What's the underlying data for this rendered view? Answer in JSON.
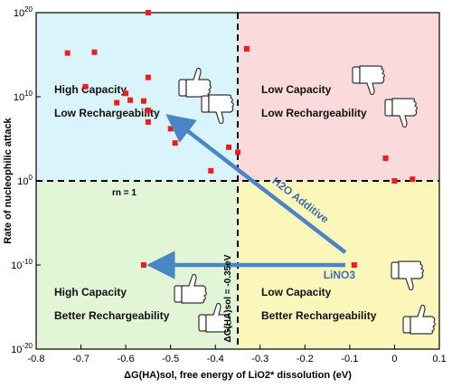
{
  "chart_data": {
    "type": "scatter",
    "xlabel": "ΔG(HA)sol, free energy of LiO2* dissolution (eV)",
    "ylabel": "Rate of nucleophilic attack",
    "xlim": [
      -0.8,
      0.1
    ],
    "ylim_log10": [
      -20,
      20
    ],
    "y_scale": "log",
    "x_ticks": [
      "-0.8",
      "-0.7",
      "-0.6",
      "-0.5",
      "-0.4",
      "-0.3",
      "-0.2",
      "-0.1",
      "0",
      "0.1"
    ],
    "y_ticks": [
      "10^-20",
      "10^-10",
      "10^0",
      "10^10",
      "10^20"
    ],
    "threshold_x": -0.35,
    "threshold_y_log10": 0,
    "threshold_x_label": "ΔG(HA)sol = -0.35eV",
    "threshold_y_label": "rn = 1",
    "quadrants": [
      {
        "position": "top-left",
        "line1": "High Capacity",
        "line2": "Low Rechargeability",
        "color": "#d9f4fb"
      },
      {
        "position": "top-right",
        "line1": "Low Capacity",
        "line2": "Low Rechargeability",
        "color": "#fadada"
      },
      {
        "position": "bottom-left",
        "line1": "High Capacity",
        "line2": "Better Rechargeability",
        "color": "#e2f5d6"
      },
      {
        "position": "bottom-right",
        "line1": "Low Capacity",
        "line2": "Better Rechargeability",
        "color": "#fbf7bb"
      }
    ],
    "points": [
      {
        "x": -0.73,
        "y_log10": 15.2
      },
      {
        "x": -0.67,
        "y_log10": 15.3
      },
      {
        "x": -0.69,
        "y_log10": 11.2
      },
      {
        "x": -0.62,
        "y_log10": 9.3
      },
      {
        "x": -0.6,
        "y_log10": 10.4
      },
      {
        "x": -0.59,
        "y_log10": 9.6
      },
      {
        "x": -0.56,
        "y_log10": 9.5
      },
      {
        "x": -0.55,
        "y_log10": 20.0
      },
      {
        "x": -0.55,
        "y_log10": 12.3
      },
      {
        "x": -0.55,
        "y_log10": 8.4
      },
      {
        "x": -0.55,
        "y_log10": 7.0
      },
      {
        "x": -0.5,
        "y_log10": 6.2
      },
      {
        "x": -0.49,
        "y_log10": 4.5
      },
      {
        "x": -0.37,
        "y_log10": 4.0
      },
      {
        "x": -0.35,
        "y_log10": 3.4
      },
      {
        "x": -0.41,
        "y_log10": 1.2
      },
      {
        "x": -0.33,
        "y_log10": 15.7
      },
      {
        "x": -0.02,
        "y_log10": 2.7
      },
      {
        "x": 0.0,
        "y_log10": 0.0
      },
      {
        "x": 0.04,
        "y_log10": 0.2
      },
      {
        "x": -0.56,
        "y_log10": -10.0
      },
      {
        "x": -0.09,
        "y_log10": -10.0
      }
    ],
    "arrows": [
      {
        "label": "H2O Additive",
        "from": {
          "x": -0.11,
          "y_log10": -8.5
        },
        "to": {
          "x": -0.5,
          "y_log10": 7.5
        },
        "color": "#4a86c5"
      },
      {
        "label": "LiNO3",
        "from": {
          "x": -0.11,
          "y_log10": -10.0
        },
        "to": {
          "x": -0.54,
          "y_log10": -10.0
        },
        "color": "#4a86c5"
      }
    ],
    "point_color": "#ee1c1c",
    "grid": false
  }
}
